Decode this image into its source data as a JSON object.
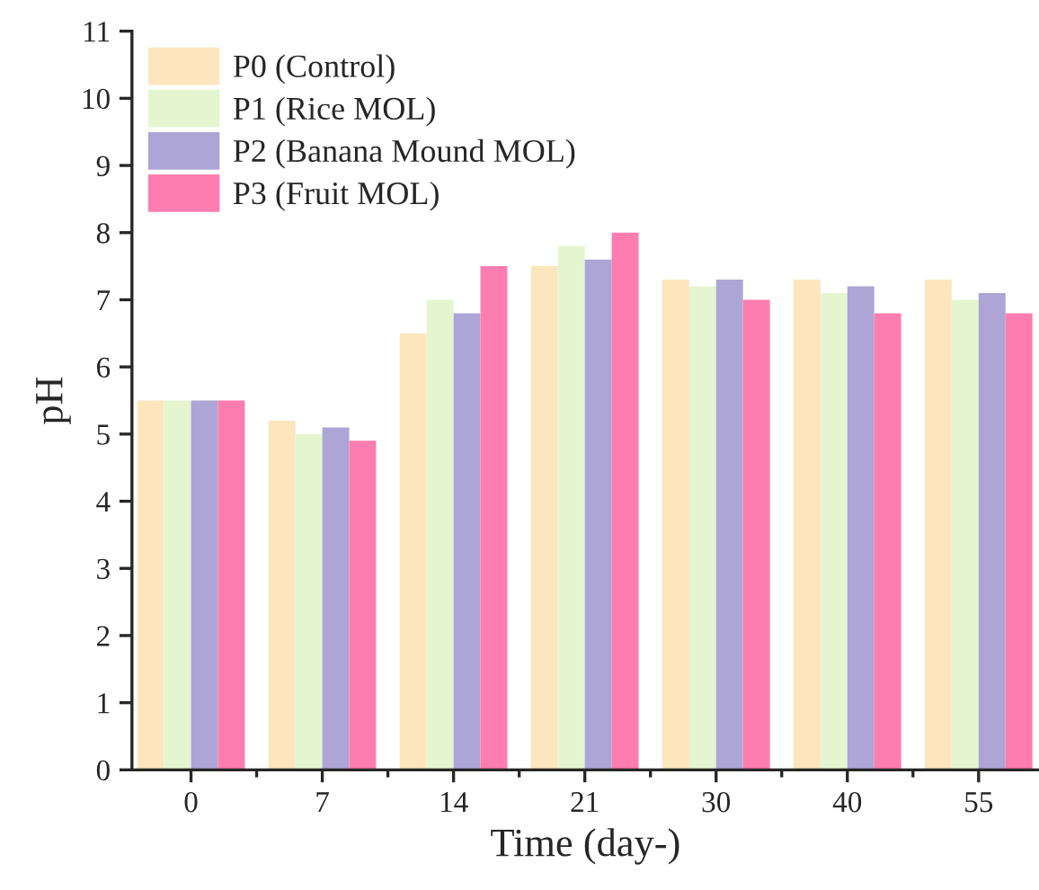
{
  "chart_data": {
    "type": "bar",
    "xlabel": "Time (day-)",
    "ylabel": "pH",
    "categories": [
      "0",
      "7",
      "14",
      "21",
      "30",
      "40",
      "55"
    ],
    "series": [
      {
        "name": "P0 (Control)",
        "color": "#fde5bd",
        "values": [
          5.5,
          5.2,
          6.5,
          7.5,
          7.3,
          7.3,
          7.3
        ]
      },
      {
        "name": "P1 (Rice MOL)",
        "color": "#e5f5d0",
        "values": [
          5.5,
          5.0,
          7.0,
          7.8,
          7.2,
          7.1,
          7.0
        ]
      },
      {
        "name": "P2 (Banana Mound MOL)",
        "color": "#aca5d6",
        "values": [
          5.5,
          5.1,
          6.8,
          7.6,
          7.3,
          7.2,
          7.1
        ]
      },
      {
        "name": "P3 (Fruit MOL)",
        "color": "#fe7db0",
        "values": [
          5.5,
          4.9,
          7.5,
          8.0,
          7.0,
          6.8,
          6.8
        ]
      }
    ],
    "ylim": [
      0,
      11
    ],
    "yticks": [
      0,
      1,
      2,
      3,
      4,
      5,
      6,
      7,
      8,
      9,
      10,
      11
    ],
    "grid": false,
    "legend": "top left"
  }
}
